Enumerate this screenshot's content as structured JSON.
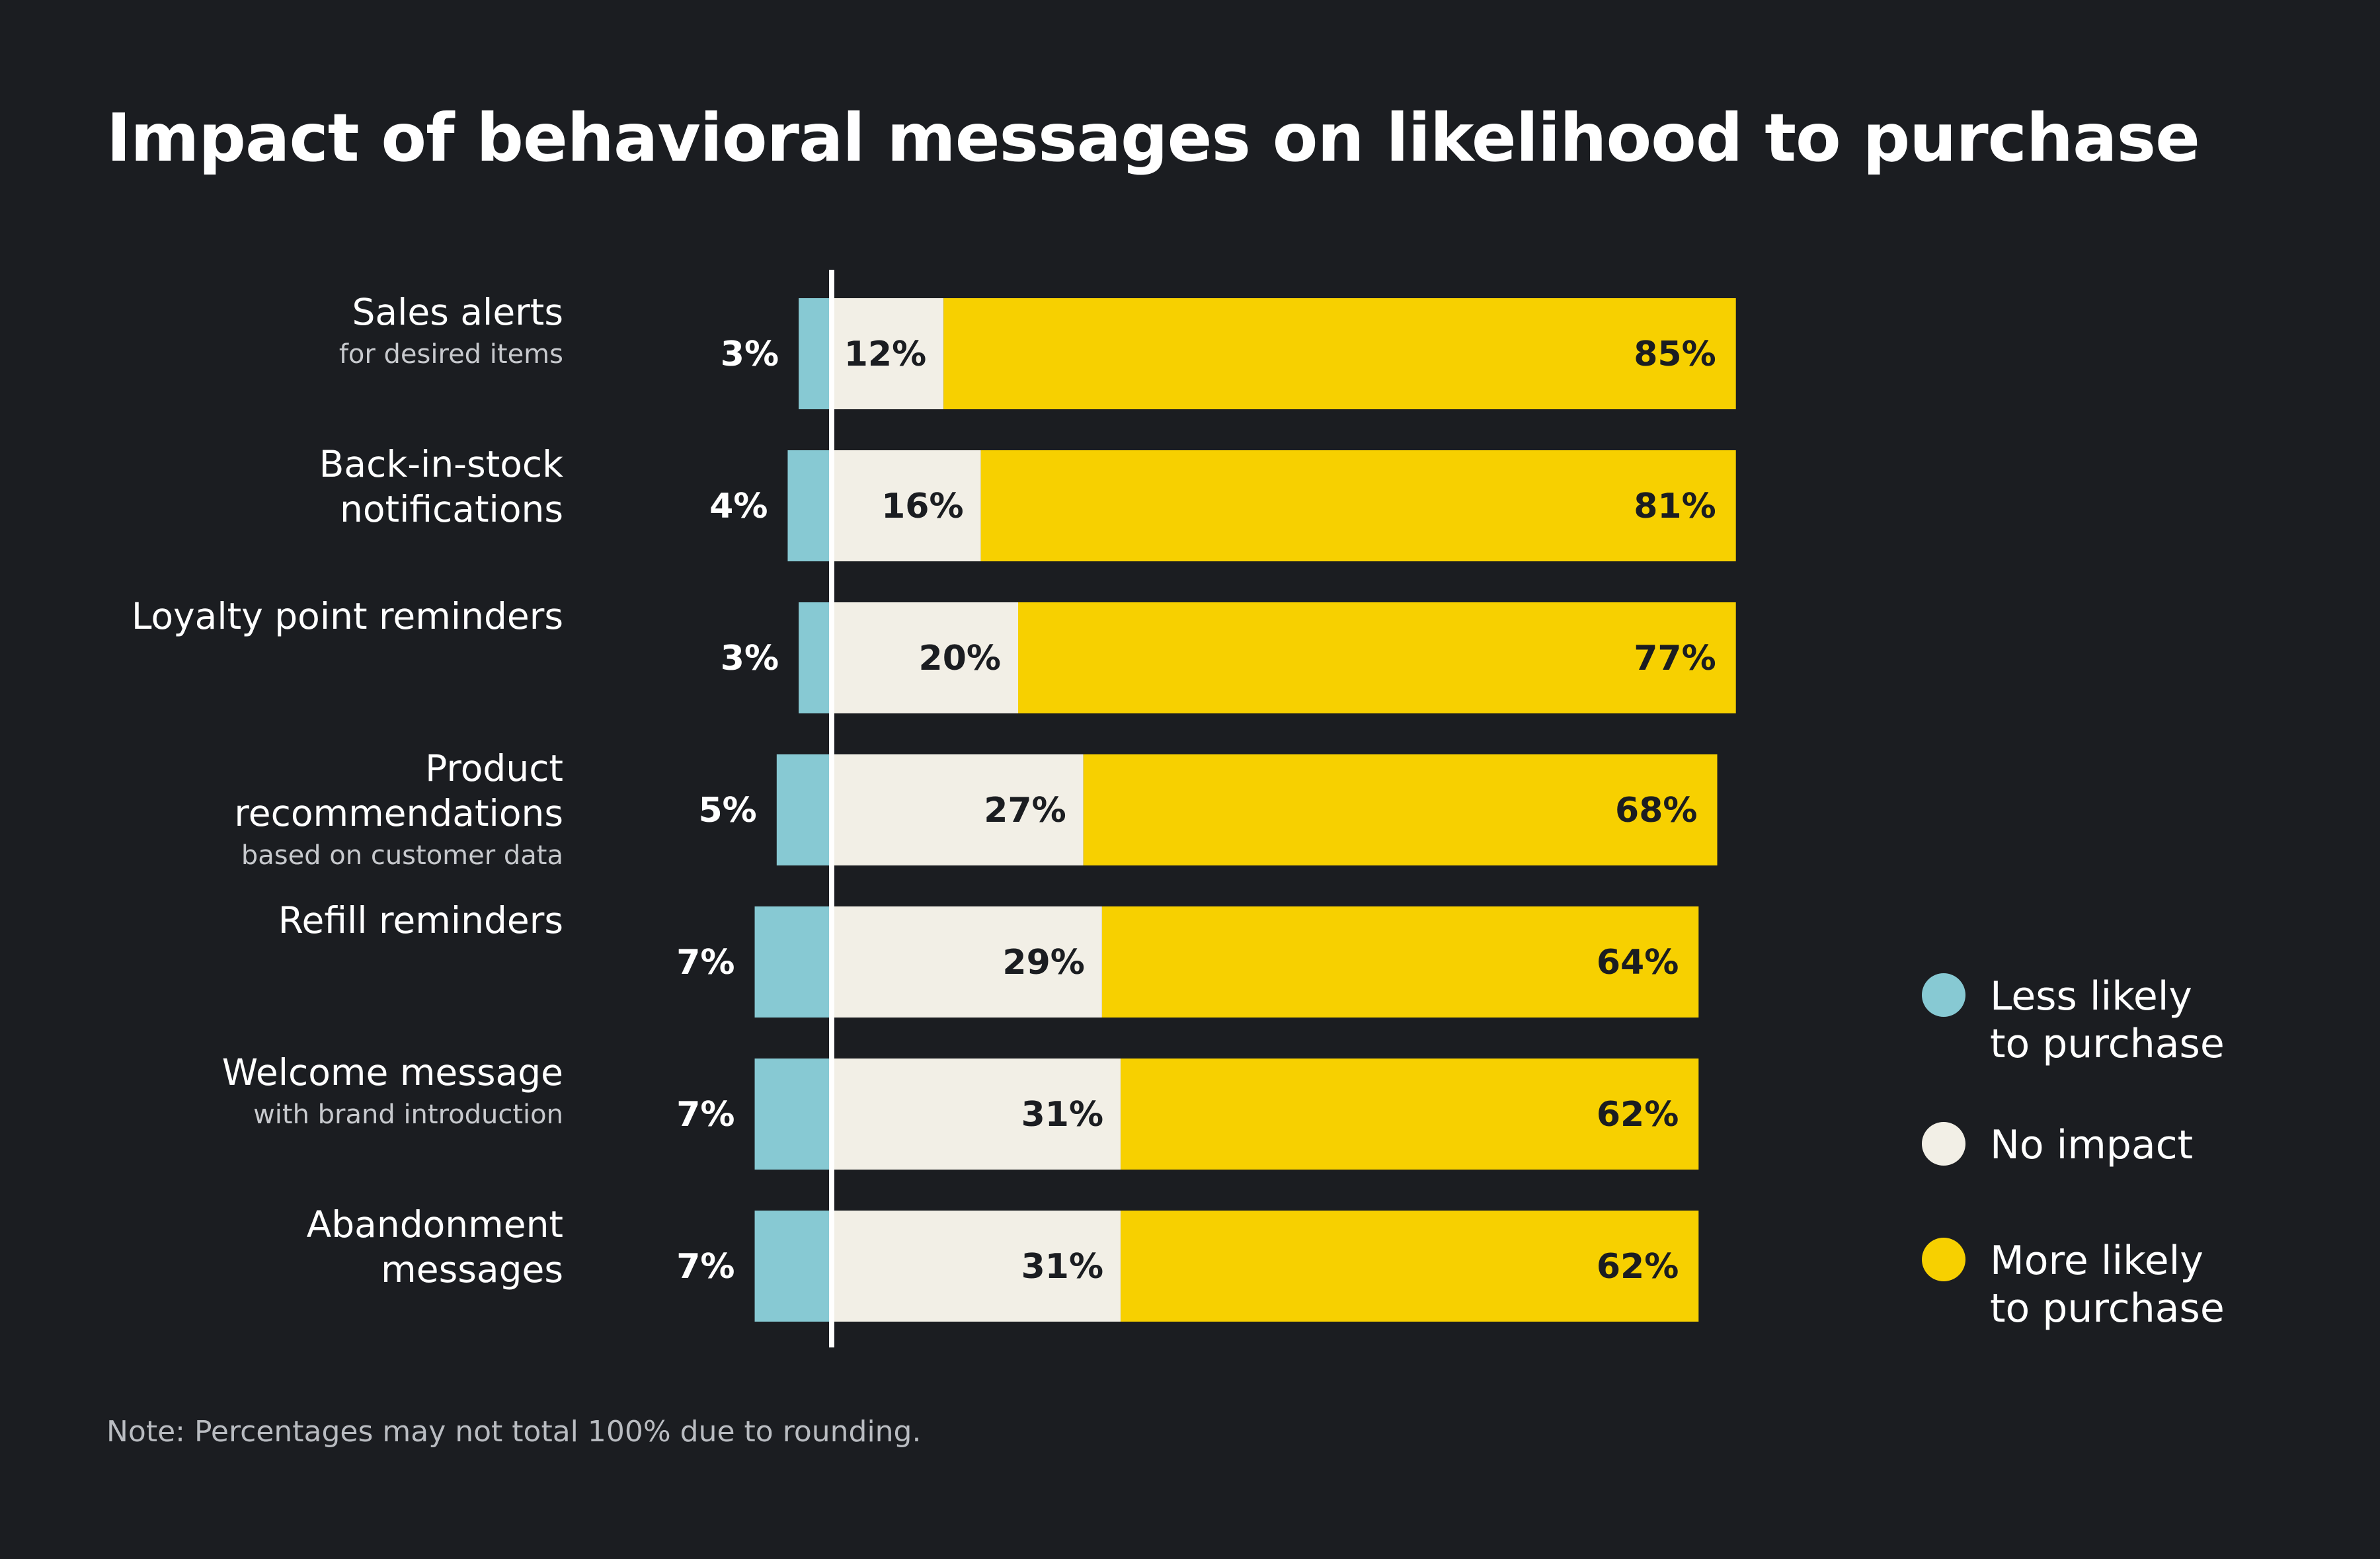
{
  "title": "Impact of behavioral messages on likelihood to purchase",
  "note": "Note: Percentages may not total 100% due to rounding.",
  "colors": {
    "background": "#1b1d21",
    "less_likely": "#87c9d3",
    "no_impact": "#f2efe6",
    "more_likely": "#f7d000",
    "text": "#ffffff",
    "subtext": "#c7c9cd"
  },
  "legend": [
    {
      "key": "less_likely",
      "line1": "Less likely",
      "line2": "to purchase"
    },
    {
      "key": "no_impact",
      "line1": "No impact",
      "line2": ""
    },
    {
      "key": "more_likely",
      "line1": "More likely",
      "line2": "to purchase"
    }
  ],
  "chart_data": {
    "type": "bar",
    "orientation": "horizontal",
    "stacked": true,
    "diverging": true,
    "title": "Impact of behavioral messages on likelihood to purchase",
    "categories": [
      {
        "label_lines": [
          "Sales alerts"
        ],
        "sublabel": "for desired items"
      },
      {
        "label_lines": [
          "Back-in-stock",
          "notifications"
        ],
        "sublabel": ""
      },
      {
        "label_lines": [
          "Loyalty point reminders"
        ],
        "sublabel": ""
      },
      {
        "label_lines": [
          "Product",
          "recommendations"
        ],
        "sublabel": "based on customer data"
      },
      {
        "label_lines": [
          "Refill reminders"
        ],
        "sublabel": ""
      },
      {
        "label_lines": [
          "Welcome message"
        ],
        "sublabel": "with brand introduction"
      },
      {
        "label_lines": [
          "Abandonment",
          "messages"
        ],
        "sublabel": ""
      }
    ],
    "series": [
      {
        "name": "Less likely to purchase",
        "key": "less_likely",
        "values": [
          3,
          4,
          3,
          5,
          7,
          7,
          7
        ],
        "labels": [
          "3%",
          "4%",
          "3%",
          "5%",
          "7%",
          "7%",
          "7%"
        ]
      },
      {
        "name": "No impact",
        "key": "no_impact",
        "values": [
          12,
          16,
          20,
          27,
          29,
          31,
          31
        ],
        "labels": [
          "12%",
          "16%",
          "20%",
          "27%",
          "29%",
          "31%",
          "31%"
        ]
      },
      {
        "name": "More likely to purchase",
        "key": "more_likely",
        "values": [
          85,
          81,
          77,
          68,
          64,
          62,
          62
        ],
        "labels": [
          "85%",
          "81%",
          "77%",
          "68%",
          "64%",
          "62%",
          "62%"
        ]
      }
    ],
    "xlim": [
      -7,
      100
    ],
    "legend_position": "right",
    "grid": false
  }
}
